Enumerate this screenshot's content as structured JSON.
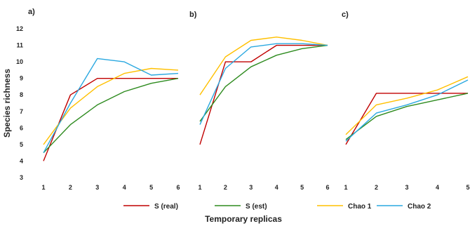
{
  "chart_data": {
    "type": "line",
    "ylabel": "Species richness",
    "xlabel": "Temporary replicas",
    "ylim": [
      3,
      12
    ],
    "yticks": [
      "3",
      "4",
      "5",
      "6",
      "7",
      "8",
      "9",
      "10",
      "11",
      "12"
    ],
    "grid": false,
    "legend_position": "bottom",
    "series_styles": [
      {
        "name": "S (real)",
        "color": "#c00000"
      },
      {
        "name": "S (est)",
        "color": "#2e8b1f"
      },
      {
        "name": "Chao 1",
        "color": "#ffc000"
      },
      {
        "name": "Chao 2",
        "color": "#2aa8e0"
      }
    ],
    "panels": [
      {
        "label": "a)",
        "x": [
          "1",
          "2",
          "3",
          "4",
          "5",
          "6"
        ],
        "series": [
          {
            "name": "S (real)",
            "values": [
              4.0,
              8.0,
              9.0,
              9.0,
              9.0,
              9.0
            ]
          },
          {
            "name": "S (est)",
            "values": [
              4.5,
              6.2,
              7.4,
              8.2,
              8.7,
              9.0
            ]
          },
          {
            "name": "Chao 1",
            "values": [
              5.0,
              7.2,
              8.5,
              9.3,
              9.6,
              9.5
            ]
          },
          {
            "name": "Chao 2",
            "values": [
              4.5,
              7.5,
              10.2,
              10.0,
              9.2,
              9.3
            ]
          }
        ]
      },
      {
        "label": "b)",
        "x": [
          "1",
          "2",
          "3",
          "4",
          "5",
          "6"
        ],
        "series": [
          {
            "name": "S (real)",
            "values": [
              5.0,
              10.0,
              10.0,
              11.0,
              11.0,
              11.0
            ]
          },
          {
            "name": "S (est)",
            "values": [
              6.4,
              8.5,
              9.7,
              10.4,
              10.8,
              11.0
            ]
          },
          {
            "name": "Chao 1",
            "values": [
              8.0,
              10.3,
              11.3,
              11.5,
              11.3,
              11.0
            ]
          },
          {
            "name": "Chao 2",
            "values": [
              6.2,
              9.6,
              10.9,
              11.1,
              11.1,
              11.0
            ]
          }
        ]
      },
      {
        "label": "c)",
        "x": [
          "1",
          "2",
          "3",
          "4",
          "5"
        ],
        "series": [
          {
            "name": "S (real)",
            "values": [
              5.0,
              8.1,
              8.1,
              8.1,
              8.1
            ]
          },
          {
            "name": "S (est)",
            "values": [
              5.3,
              6.7,
              7.3,
              7.7,
              8.1
            ]
          },
          {
            "name": "Chao 1",
            "values": [
              5.6,
              7.4,
              7.8,
              8.3,
              9.1
            ]
          },
          {
            "name": "Chao 2",
            "values": [
              5.2,
              6.9,
              7.4,
              8.0,
              8.9
            ]
          }
        ]
      }
    ]
  }
}
